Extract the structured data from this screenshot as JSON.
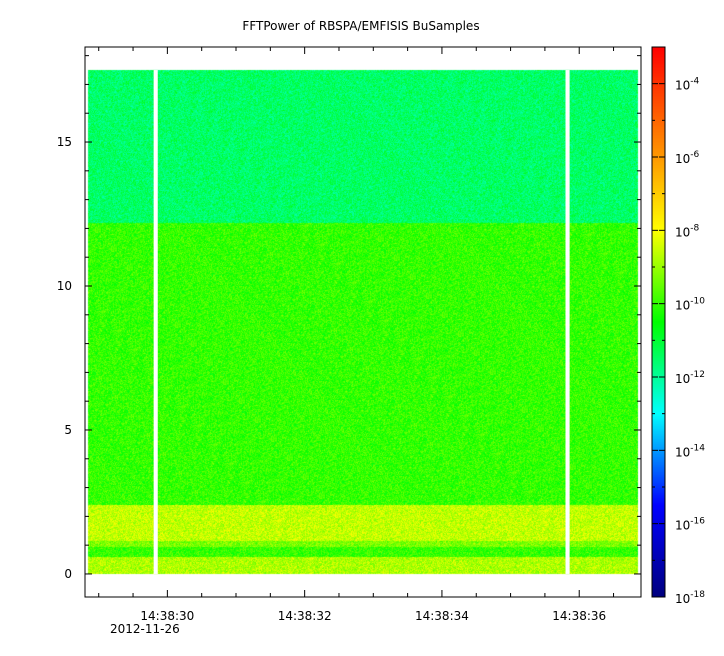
{
  "chart_data": {
    "type": "heatmap",
    "title": "FFTPower of RBSPA/EMFISIS  BuSamples",
    "xlabel": "",
    "ylabel": "",
    "x_axis": {
      "type": "time",
      "range": [
        "14:38:28.8",
        "14:38:36.9"
      ],
      "tick_labels": [
        "14:38:30",
        "14:38:32",
        "14:38:34",
        "14:38:36"
      ],
      "tick_values_sec": [
        30,
        32,
        34,
        36
      ],
      "minor_tick_interval_sec": 0.5,
      "date_label": "2012-11-26"
    },
    "y_axis": {
      "range": [
        -0.8,
        18.3
      ],
      "tick_labels": [
        "0",
        "5",
        "10",
        "15"
      ],
      "tick_values": [
        0,
        5,
        10,
        15
      ],
      "minor_tick_interval": 1
    },
    "colorbar": {
      "scale": "log",
      "range": [
        1e-18,
        0.001
      ],
      "tick_base": "10",
      "tick_exponents": [
        "-4",
        "-6",
        "-8",
        "-10",
        "-12",
        "-14",
        "-16",
        "-18"
      ],
      "colormap": [
        "#00007f",
        "#0000ff",
        "#00ffff",
        "#00ff00",
        "#ffff00",
        "#ff7f00",
        "#ff0000"
      ]
    },
    "data_extent": {
      "x_sec": [
        28.85,
        36.85
      ],
      "y": [
        0,
        17.5
      ]
    },
    "gaps_sec": [
      [
        29.8,
        29.86
      ],
      [
        35.8,
        35.86
      ]
    ],
    "bands": [
      {
        "y": [
          12.2,
          17.5
        ],
        "log_power": -11.5
      },
      {
        "y": [
          2.4,
          12.2
        ],
        "log_power": -10.0
      },
      {
        "y": [
          1.15,
          2.4
        ],
        "log_power": -8.6
      },
      {
        "y": [
          0.95,
          1.15
        ],
        "log_power": -9.3
      },
      {
        "y": [
          0.6,
          0.95
        ],
        "log_power": -10.0
      },
      {
        "y": [
          0.0,
          0.6
        ],
        "log_power": -8.8
      }
    ]
  }
}
